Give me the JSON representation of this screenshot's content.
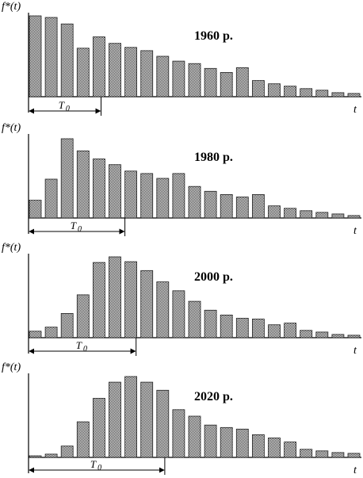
{
  "chart_data": [
    {
      "type": "bar",
      "title": "1960 р.",
      "ylabel": "f*(t)",
      "xlabel": "t",
      "annotation": "T0",
      "t0_bars": 4.5,
      "ylim": [
        0,
        10
      ],
      "values": [
        10.0,
        9.8,
        9.0,
        6.0,
        7.4,
        6.6,
        6.1,
        5.7,
        5.0,
        4.4,
        4.1,
        3.5,
        3.0,
        3.6,
        2.0,
        1.6,
        1.3,
        1.0,
        0.8,
        0.5,
        0.4
      ]
    },
    {
      "type": "bar",
      "title": "1980 р.",
      "ylabel": "f*(t)",
      "xlabel": "t",
      "annotation": "T0",
      "t0_bars": 6,
      "ylim": [
        0,
        10
      ],
      "values": [
        2.2,
        4.8,
        9.8,
        8.3,
        7.3,
        6.6,
        5.8,
        5.5,
        4.9,
        5.5,
        3.9,
        3.3,
        2.9,
        2.6,
        2.9,
        1.5,
        1.2,
        0.9,
        0.7,
        0.5,
        0.3
      ]
    },
    {
      "type": "bar",
      "title": "2000 р.",
      "ylabel": "f*(t)",
      "xlabel": "t",
      "annotation": "T0",
      "t0_bars": 6.7,
      "ylim": [
        0,
        10
      ],
      "values": [
        0.8,
        1.3,
        3.0,
        5.3,
        9.3,
        10.0,
        9.4,
        8.3,
        6.9,
        5.8,
        4.5,
        3.4,
        2.8,
        2.4,
        2.3,
        1.6,
        1.8,
        0.9,
        0.7,
        0.4,
        0.3
      ]
    },
    {
      "type": "bar",
      "title": "2020 р.",
      "ylabel": "f*(t)",
      "xlabel": "t",
      "annotation": "T0",
      "t0_bars": 8.5,
      "ylim": [
        0,
        10
      ],
      "values": [
        0.2,
        0.4,
        1.4,
        4.4,
        7.3,
        9.3,
        10.0,
        9.3,
        8.3,
        5.9,
        5.1,
        4.0,
        3.7,
        3.5,
        2.8,
        2.4,
        1.9,
        1.0,
        0.8,
        0.6,
        0.5
      ]
    }
  ]
}
